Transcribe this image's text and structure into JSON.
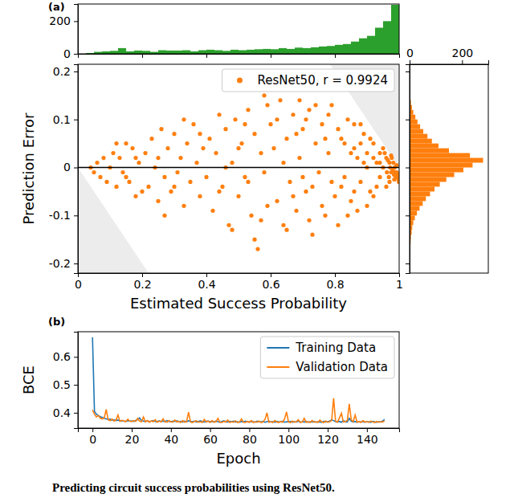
{
  "caption": "Predicting circuit success probabilities using ResNet50.",
  "chart_data": [
    {
      "type": "histogram",
      "title": "(a)",
      "color": "#2ca02c",
      "bins": [
        0,
        0.025,
        0.05,
        0.075,
        0.1,
        0.125,
        0.15,
        0.175,
        0.2,
        0.225,
        0.25,
        0.275,
        0.3,
        0.325,
        0.35,
        0.375,
        0.4,
        0.425,
        0.45,
        0.475,
        0.5,
        0.525,
        0.55,
        0.575,
        0.6,
        0.625,
        0.65,
        0.675,
        0.7,
        0.725,
        0.75,
        0.775,
        0.8,
        0.825,
        0.85,
        0.875,
        0.9,
        0.925,
        0.95,
        0.975,
        1
      ],
      "counts": [
        0,
        5,
        12,
        15,
        18,
        35,
        15,
        20,
        18,
        12,
        22,
        20,
        20,
        22,
        15,
        22,
        25,
        22,
        18,
        25,
        22,
        25,
        28,
        30,
        28,
        35,
        30,
        38,
        35,
        40,
        45,
        48,
        55,
        60,
        75,
        95,
        110,
        160,
        200,
        300
      ],
      "xlim": [
        0,
        1
      ],
      "xticks": [
        0,
        0.2,
        0.4,
        0.6,
        0.8,
        1
      ],
      "ylim": [
        0,
        305
      ],
      "yticks": [
        0,
        200
      ],
      "tick_labels": "y"
    },
    {
      "type": "scatter",
      "x_label": "Estimated Success Probability",
      "y_label": "Prediction Error",
      "x": [
        0.04,
        0.05,
        0.06,
        0.07,
        0.08,
        0.09,
        0.1,
        0.11,
        0.12,
        0.13,
        0.14,
        0.15,
        0.16,
        0.17,
        0.18,
        0.19,
        0.2,
        0.12,
        0.15,
        0.18,
        0.21,
        0.22,
        0.23,
        0.24,
        0.25,
        0.26,
        0.27,
        0.28,
        0.29,
        0.3,
        0.31,
        0.32,
        0.33,
        0.34,
        0.35,
        0.36,
        0.37,
        0.38,
        0.39,
        0.4,
        0.27,
        0.33,
        0.25,
        0.3,
        0.38,
        0.41,
        0.42,
        0.43,
        0.44,
        0.45,
        0.46,
        0.47,
        0.48,
        0.49,
        0.5,
        0.51,
        0.52,
        0.53,
        0.54,
        0.55,
        0.56,
        0.57,
        0.58,
        0.59,
        0.6,
        0.44,
        0.48,
        0.52,
        0.55,
        0.57,
        0.59,
        0.46,
        0.5,
        0.53,
        0.58,
        0.61,
        0.62,
        0.63,
        0.64,
        0.65,
        0.66,
        0.67,
        0.68,
        0.69,
        0.7,
        0.71,
        0.72,
        0.73,
        0.74,
        0.75,
        0.76,
        0.77,
        0.78,
        0.79,
        0.8,
        0.62,
        0.65,
        0.68,
        0.71,
        0.73,
        0.76,
        0.78,
        0.64,
        0.67,
        0.7,
        0.74,
        0.77,
        0.79,
        0.72,
        0.69,
        0.81,
        0.82,
        0.83,
        0.84,
        0.85,
        0.86,
        0.87,
        0.88,
        0.89,
        0.9,
        0.91,
        0.92,
        0.93,
        0.94,
        0.95,
        0.82,
        0.84,
        0.86,
        0.88,
        0.9,
        0.92,
        0.94,
        0.83,
        0.85,
        0.87,
        0.89,
        0.91,
        0.93,
        0.95,
        0.81,
        0.86,
        0.88,
        0.9,
        0.92,
        0.94,
        0.955,
        0.96,
        0.962,
        0.965,
        0.968,
        0.97,
        0.972,
        0.975,
        0.977,
        0.98,
        0.982,
        0.984,
        0.986,
        0.988,
        0.99,
        0.992,
        0.994,
        0.996,
        0.998,
        0.999,
        0.97,
        0.96,
        0.975,
        0.985,
        0.993
      ],
      "series": [
        {
          "name": "ResNet50, r = 0.9924",
          "color": "#ff7f0e",
          "marker": "circle",
          "values": [
            0.0,
            -0.01,
            0.01,
            -0.02,
            0.02,
            -0.03,
            0.0,
            0.03,
            -0.04,
            0.02,
            -0.01,
            0.05,
            -0.03,
            0.04,
            -0.06,
            0.01,
            -0.05,
            0.05,
            -0.02,
            0.02,
            0.03,
            -0.04,
            0.06,
            0.0,
            -0.07,
            0.08,
            -0.02,
            0.04,
            -0.05,
            0.07,
            -0.01,
            0.02,
            -0.08,
            0.05,
            -0.03,
            0.09,
            0.01,
            -0.06,
            0.04,
            -0.02,
            -0.1,
            0.1,
            0.02,
            -0.04,
            0.07,
            0.06,
            -0.09,
            0.03,
            0.11,
            -0.04,
            0.08,
            -0.12,
            0.01,
            0.1,
            -0.06,
            0.05,
            -0.02,
            0.12,
            -0.1,
            0.07,
            -0.17,
            0.03,
            0.15,
            -0.08,
            0.09,
            -0.05,
            -0.13,
            0.09,
            -0.15,
            -0.11,
            0.13,
            0.0,
            0.04,
            -0.03,
            -0.01,
            0.04,
            -0.07,
            0.14,
            -0.12,
            0.06,
            -0.03,
            0.11,
            -0.09,
            0.02,
            0.08,
            -0.05,
            0.12,
            -0.14,
            0.05,
            -0.01,
            0.09,
            -0.1,
            0.03,
            0.13,
            -0.06,
            0.1,
            -0.13,
            0.07,
            0.1,
            -0.04,
            -0.08,
            0.11,
            0.01,
            -0.06,
            -0.02,
            0.13,
            0.06,
            -0.03,
            -0.11,
            0.14,
            0.08,
            -0.04,
            0.05,
            0.1,
            -0.07,
            0.04,
            0.02,
            -0.03,
            0.07,
            0.03,
            -0.05,
            0.05,
            0.01,
            -0.02,
            0.04,
            0.06,
            -0.1,
            0.09,
            0.05,
            -0.08,
            0.02,
            0.03,
            -0.02,
            0.03,
            -0.09,
            0.01,
            0.06,
            -0.04,
            0.0,
            -0.12,
            -0.05,
            0.09,
            0.0,
            -0.06,
            0.01,
            0.03,
            0.02,
            -0.01,
            0.015,
            -0.02,
            0.01,
            0.0,
            -0.01,
            0.02,
            -0.005,
            0.01,
            -0.015,
            0.0,
            -0.01,
            -0.02,
            0.005,
            -0.015,
            -0.02,
            -0.025,
            -0.03,
            -0.03,
            -0.04,
            0.025,
            -0.025,
            -0.01
          ]
        }
      ],
      "xlim": [
        0,
        1
      ],
      "xticks": [
        0,
        0.2,
        0.4,
        0.6,
        0.8,
        1
      ],
      "ylim": [
        -0.22,
        0.215
      ],
      "yticks": [
        -0.2,
        -0.1,
        0,
        0.1,
        0.2
      ],
      "legend": "upper right"
    },
    {
      "type": "histogram",
      "orientation": "horizontal",
      "color": "#ff7f0e",
      "bins": [
        -0.18,
        -0.17,
        -0.16,
        -0.15,
        -0.14,
        -0.13,
        -0.12,
        -0.11,
        -0.1,
        -0.09,
        -0.08,
        -0.07,
        -0.06,
        -0.05,
        -0.04,
        -0.03,
        -0.02,
        -0.01,
        0,
        0.01,
        0.02,
        0.03,
        0.04,
        0.05,
        0.06,
        0.07,
        0.08,
        0.09,
        0.1,
        0.11,
        0.12,
        0.13,
        0.14,
        0.15,
        0.16
      ],
      "counts": [
        2,
        3,
        4,
        5,
        8,
        10,
        14,
        20,
        28,
        38,
        50,
        62,
        78,
        95,
        115,
        140,
        170,
        205,
        240,
        280,
        230,
        150,
        110,
        85,
        68,
        52,
        40,
        30,
        22,
        14,
        9,
        5,
        3,
        1
      ],
      "xlim": [
        0,
        300
      ],
      "xticks": [
        0,
        200
      ],
      "ylim": [
        -0.22,
        0.215
      ],
      "yticks": [
        -0.2,
        -0.1,
        0,
        0.1,
        0.2
      ],
      "tick_labels": "x"
    },
    {
      "type": "line",
      "title": "(b)",
      "x_label": "Epoch",
      "y_label": "BCE",
      "x": [
        0,
        1,
        2,
        3,
        4,
        5,
        6,
        7,
        8,
        9,
        10,
        11,
        12,
        13,
        14,
        15,
        16,
        17,
        18,
        19,
        20,
        21,
        22,
        23,
        24,
        25,
        26,
        27,
        28,
        29,
        30,
        31,
        32,
        33,
        34,
        35,
        36,
        37,
        38,
        39,
        40,
        41,
        42,
        43,
        44,
        45,
        46,
        47,
        48,
        49,
        50,
        51,
        52,
        53,
        54,
        55,
        56,
        57,
        58,
        59,
        60,
        61,
        62,
        63,
        64,
        65,
        66,
        67,
        68,
        69,
        70,
        71,
        72,
        73,
        74,
        75,
        76,
        77,
        78,
        79,
        80,
        81,
        82,
        83,
        84,
        85,
        86,
        87,
        88,
        89,
        90,
        91,
        92,
        93,
        94,
        95,
        96,
        97,
        98,
        99,
        100,
        101,
        102,
        103,
        104,
        105,
        106,
        107,
        108,
        109,
        110,
        111,
        112,
        113,
        114,
        115,
        116,
        117,
        118,
        119,
        120,
        121,
        122,
        123,
        124,
        125,
        126,
        127,
        128,
        129,
        130,
        131,
        132,
        133,
        134,
        135,
        136,
        137,
        138,
        139,
        140,
        141,
        142,
        143,
        144,
        145,
        146,
        147,
        148,
        149
      ],
      "series": [
        {
          "name": "Training Data",
          "color": "#1f77b4",
          "values": [
            0.67,
            0.405,
            0.395,
            0.39,
            0.386,
            0.383,
            0.38,
            0.378,
            0.376,
            0.377,
            0.373,
            0.375,
            0.372,
            0.374,
            0.371,
            0.372,
            0.37,
            0.369,
            0.372,
            0.37,
            0.371,
            0.369,
            0.372,
            0.375,
            0.382,
            0.372,
            0.37,
            0.369,
            0.371,
            0.368,
            0.37,
            0.372,
            0.369,
            0.368,
            0.371,
            0.369,
            0.37,
            0.368,
            0.372,
            0.369,
            0.368,
            0.37,
            0.369,
            0.371,
            0.368,
            0.369,
            0.367,
            0.37,
            0.368,
            0.371,
            0.369,
            0.368,
            0.37,
            0.367,
            0.369,
            0.371,
            0.368,
            0.367,
            0.369,
            0.37,
            0.368,
            0.369,
            0.367,
            0.37,
            0.368,
            0.366,
            0.369,
            0.371,
            0.368,
            0.367,
            0.369,
            0.368,
            0.37,
            0.367,
            0.368,
            0.366,
            0.369,
            0.367,
            0.37,
            0.368,
            0.367,
            0.369,
            0.368,
            0.366,
            0.37,
            0.368,
            0.367,
            0.369,
            0.366,
            0.368,
            0.37,
            0.367,
            0.368,
            0.366,
            0.369,
            0.367,
            0.368,
            0.37,
            0.366,
            0.368,
            0.367,
            0.369,
            0.366,
            0.368,
            0.367,
            0.37,
            0.366,
            0.368,
            0.367,
            0.369,
            0.366,
            0.368,
            0.367,
            0.369,
            0.366,
            0.368,
            0.367,
            0.366,
            0.369,
            0.367,
            0.368,
            0.37,
            0.375,
            0.372,
            0.368,
            0.367,
            0.369,
            0.366,
            0.372,
            0.368,
            0.367,
            0.38,
            0.37,
            0.367,
            0.369,
            0.366,
            0.368,
            0.367,
            0.369,
            0.366,
            0.368,
            0.367,
            0.366,
            0.369,
            0.367,
            0.366,
            0.368,
            0.367,
            0.37,
            0.376
          ]
        },
        {
          "name": "Validation Data",
          "color": "#ff7f0e",
          "values": [
            0.41,
            0.395,
            0.385,
            0.39,
            0.38,
            0.378,
            0.382,
            0.412,
            0.375,
            0.372,
            0.378,
            0.37,
            0.374,
            0.392,
            0.369,
            0.373,
            0.371,
            0.368,
            0.377,
            0.37,
            0.368,
            0.372,
            0.369,
            0.38,
            0.37,
            0.368,
            0.385,
            0.367,
            0.372,
            0.366,
            0.371,
            0.368,
            0.375,
            0.366,
            0.37,
            0.367,
            0.378,
            0.368,
            0.366,
            0.372,
            0.368,
            0.366,
            0.374,
            0.367,
            0.369,
            0.365,
            0.372,
            0.366,
            0.368,
            0.402,
            0.367,
            0.365,
            0.369,
            0.371,
            0.366,
            0.368,
            0.365,
            0.376,
            0.367,
            0.37,
            0.365,
            0.372,
            0.366,
            0.368,
            0.38,
            0.366,
            0.365,
            0.369,
            0.367,
            0.374,
            0.365,
            0.368,
            0.366,
            0.371,
            0.365,
            0.367,
            0.378,
            0.366,
            0.365,
            0.369,
            0.366,
            0.372,
            0.365,
            0.368,
            0.366,
            0.37,
            0.365,
            0.367,
            0.376,
            0.4,
            0.366,
            0.368,
            0.365,
            0.372,
            0.367,
            0.365,
            0.369,
            0.366,
            0.378,
            0.403,
            0.367,
            0.365,
            0.37,
            0.366,
            0.368,
            0.375,
            0.365,
            0.367,
            0.38,
            0.366,
            0.368,
            0.365,
            0.372,
            0.366,
            0.368,
            0.365,
            0.374,
            0.367,
            0.365,
            0.37,
            0.366,
            0.368,
            0.372,
            0.452,
            0.37,
            0.366,
            0.382,
            0.398,
            0.367,
            0.369,
            0.372,
            0.432,
            0.375,
            0.368,
            0.392,
            0.366,
            0.369,
            0.365,
            0.372,
            0.367,
            0.368,
            0.366,
            0.37,
            0.367,
            0.365,
            0.369,
            0.366,
            0.368,
            0.367,
            0.371
          ]
        }
      ],
      "xlim": [
        -7.45,
        156.45
      ],
      "xticks": [
        0,
        20,
        40,
        60,
        80,
        100,
        120,
        140
      ],
      "ylim": [
        0.345,
        0.69
      ],
      "yticks": [
        0.4,
        0.5,
        0.6
      ],
      "legend": "upper right"
    }
  ]
}
